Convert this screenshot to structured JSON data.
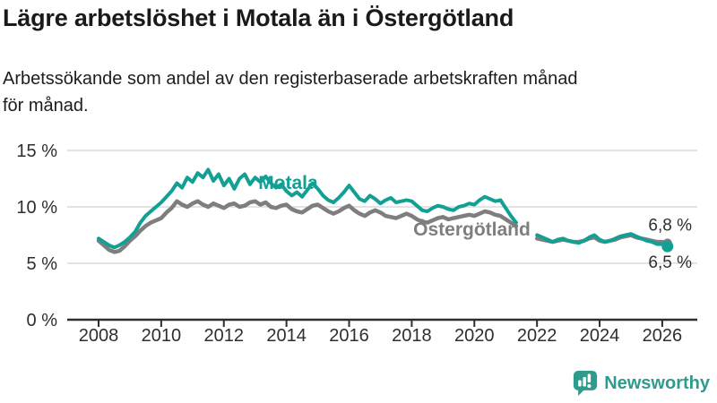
{
  "header": {
    "title": "Lägre arbetslöshet i Motala än i Östergötland",
    "subtitle_lines": [
      "Arbetssökande som andel av den registerbaserade arbetskraften månad",
      "för månad."
    ]
  },
  "chart_data": {
    "type": "line",
    "title": "Lägre arbetslöshet i Motala än i Östergötland",
    "subtitle": "Arbetssökande som andel av den registerbaserade arbetskraften månad för månad.",
    "unit": "%",
    "grid": "horizontal-only",
    "legend_position": "inline-labels",
    "xlim": [
      2007.0,
      2027.1
    ],
    "ylim": [
      0,
      15.6
    ],
    "yticks": [
      0,
      5,
      10,
      15
    ],
    "ytick_labels": [
      "0 %",
      "5 %",
      "10 %",
      "15 %"
    ],
    "xticks": [
      2008,
      2010,
      2012,
      2014,
      2016,
      2018,
      2020,
      2022,
      2024,
      2026
    ],
    "xtick_labels": [
      "2008",
      "2010",
      "2012",
      "2014",
      "2016",
      "2018",
      "2020",
      "2022",
      "2024",
      "2026"
    ],
    "note": "data gap between mid-2021 and 2022",
    "series": [
      {
        "name": "Östergötland",
        "color": "#7e7e7e",
        "line_width": 4.5,
        "end_dot_radius": 5,
        "end_label": "6,8 %",
        "label_side": "above",
        "segments": [
          {
            "start": 2008.0,
            "step": 0.16667,
            "values": [
              7.0,
              6.6,
              6.2,
              6.0,
              6.1,
              6.5,
              7.0,
              7.4,
              7.9,
              8.3,
              8.6,
              8.8,
              9.0,
              9.5,
              9.9,
              10.5,
              10.2,
              10.0,
              10.3,
              10.5,
              10.2,
              10.0,
              10.3,
              10.1,
              9.9,
              10.2,
              10.3,
              10.0,
              10.1,
              10.4,
              10.5,
              10.2,
              10.4,
              10.0,
              9.9,
              10.1,
              10.2,
              9.8,
              9.6,
              9.5,
              9.8,
              10.1,
              10.2,
              9.9,
              9.6,
              9.4,
              9.6,
              9.9,
              10.1,
              9.7,
              9.4,
              9.2,
              9.5,
              9.7,
              9.5,
              9.2,
              9.1,
              9.0,
              9.2,
              9.4,
              9.2,
              8.9,
              8.7,
              8.6,
              8.8,
              9.0,
              9.1,
              8.9,
              9.0,
              9.1,
              9.2,
              9.3,
              9.2,
              9.4,
              9.6,
              9.5,
              9.3,
              9.2,
              8.9,
              8.6,
              8.3
            ]
          },
          {
            "start": 2022.0,
            "step": 0.16667,
            "values": [
              7.2,
              7.1,
              7.0,
              6.9,
              7.0,
              7.1,
              7.0,
              6.9,
              6.9,
              7.0,
              7.2,
              7.3,
              7.0,
              6.9,
              7.0,
              7.1,
              7.3,
              7.4,
              7.5,
              7.3,
              7.2,
              7.1,
              7.0,
              6.9,
              6.9,
              6.8
            ]
          }
        ]
      },
      {
        "name": "Motala",
        "color": "#12a095",
        "line_width": 4,
        "end_dot_radius": 6.5,
        "end_label": "6,5 %",
        "label_side": "below",
        "segments": [
          {
            "start": 2008.0,
            "step": 0.16667,
            "values": [
              7.2,
              6.9,
              6.6,
              6.4,
              6.6,
              6.9,
              7.3,
              7.8,
              8.6,
              9.2,
              9.6,
              10.0,
              10.4,
              10.9,
              11.4,
              12.1,
              11.7,
              12.6,
              12.2,
              13.0,
              12.6,
              13.3,
              12.3,
              12.9,
              11.9,
              12.5,
              11.6,
              12.5,
              12.9,
              12.0,
              12.6,
              12.2,
              12.7,
              12.1,
              11.7,
              12.0,
              11.4,
              11.0,
              11.3,
              10.9,
              11.5,
              12.1,
              11.6,
              11.0,
              10.6,
              10.4,
              10.8,
              11.3,
              11.9,
              11.3,
              10.7,
              10.5,
              11.0,
              10.7,
              10.3,
              10.6,
              10.8,
              10.4,
              10.5,
              10.6,
              10.5,
              10.1,
              9.7,
              9.6,
              9.9,
              10.1,
              10.0,
              9.8,
              9.7,
              10.0,
              10.1,
              10.3,
              10.2,
              10.6,
              10.9,
              10.7,
              10.5,
              10.6,
              9.9,
              9.2,
              8.6
            ]
          },
          {
            "start": 2022.0,
            "step": 0.16667,
            "values": [
              7.5,
              7.3,
              7.1,
              6.9,
              7.1,
              7.2,
              7.0,
              6.9,
              6.8,
              7.0,
              7.3,
              7.5,
              7.1,
              6.9,
              7.0,
              7.2,
              7.4,
              7.5,
              7.6,
              7.4,
              7.2,
              7.0,
              6.9,
              6.7,
              6.7,
              6.5
            ]
          }
        ]
      }
    ],
    "annotations": [
      {
        "text": "Motala",
        "x": 2013.1,
        "y": 11.6,
        "color": "#12a095"
      },
      {
        "text": "Östergötland",
        "x": 2018.05,
        "y": 7.45,
        "color": "#7e7e7e"
      }
    ]
  },
  "footer": {
    "brand": "Newsworthy",
    "brand_color": "#2e9b8c"
  },
  "colors": {
    "motala": "#12a095",
    "ostergotland": "#7e7e7e",
    "axis": "#2e2e2e",
    "gridline": "#dadada",
    "value_label": "#2f2f2f"
  }
}
